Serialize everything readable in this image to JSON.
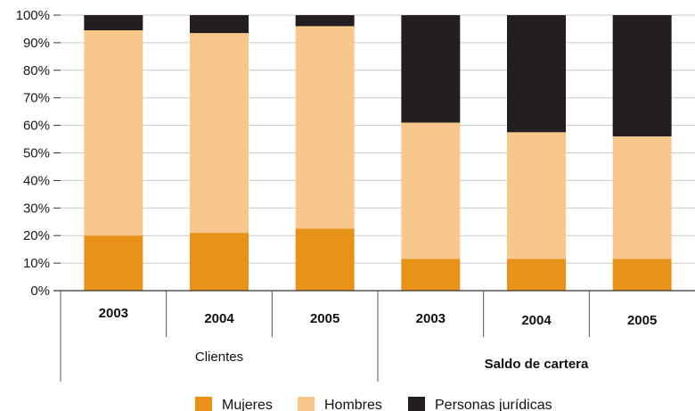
{
  "chart_data": {
    "type": "bar",
    "stacked": true,
    "percent": true,
    "ylim": [
      0,
      100
    ],
    "yticks": [
      "0%",
      "10%",
      "20%",
      "30%",
      "40%",
      "50%",
      "60%",
      "70%",
      "80%",
      "90%",
      "100%"
    ],
    "grid": true,
    "legend_position": "bottom",
    "categories": [
      "2003",
      "2004",
      "2005",
      "2003",
      "2004",
      "2005"
    ],
    "groups": [
      {
        "label": "Clientes",
        "bold": false,
        "span": [
          0,
          2
        ]
      },
      {
        "label": "Saldo de cartera",
        "bold": true,
        "span": [
          3,
          5
        ]
      }
    ],
    "series": [
      {
        "name": "Mujeres",
        "color": "#E8921A",
        "values": [
          20,
          21,
          22.5,
          11.5,
          11.5,
          11.5
        ]
      },
      {
        "name": "Hombres",
        "color": "#F7C78B",
        "values": [
          74.5,
          72.5,
          73.5,
          49.5,
          46,
          44.5
        ]
      },
      {
        "name": "Personas jurídicas",
        "color": "#231F20",
        "values": [
          5.5,
          6.5,
          4,
          39,
          42.5,
          44
        ]
      }
    ]
  }
}
